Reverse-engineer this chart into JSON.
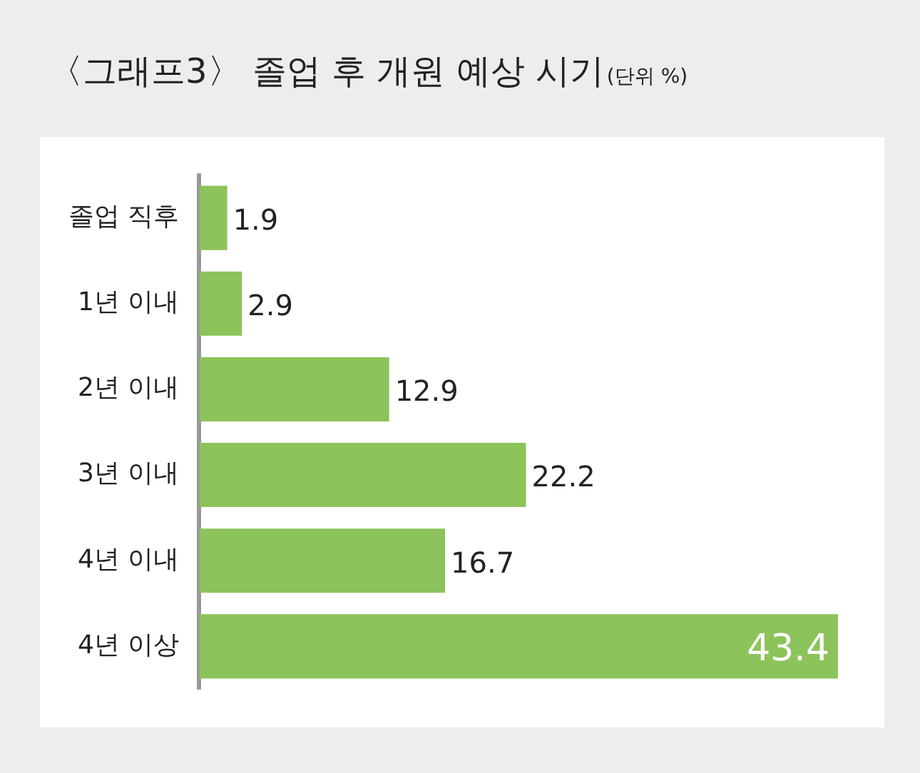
{
  "chart_data": {
    "type": "bar",
    "orientation": "horizontal",
    "title": "〈그래프3〉 졸업 후 개원 예상 시기",
    "subtitle": "(단위 %)",
    "categories": [
      "졸업 직후",
      "1년 이내",
      "2년 이내",
      "3년 이내",
      "4년 이내",
      "4년 이상"
    ],
    "values": [
      1.9,
      2.9,
      12.9,
      22.2,
      16.7,
      43.4
    ],
    "color": "#8cc35a",
    "data_labels": true,
    "legend": false
  }
}
